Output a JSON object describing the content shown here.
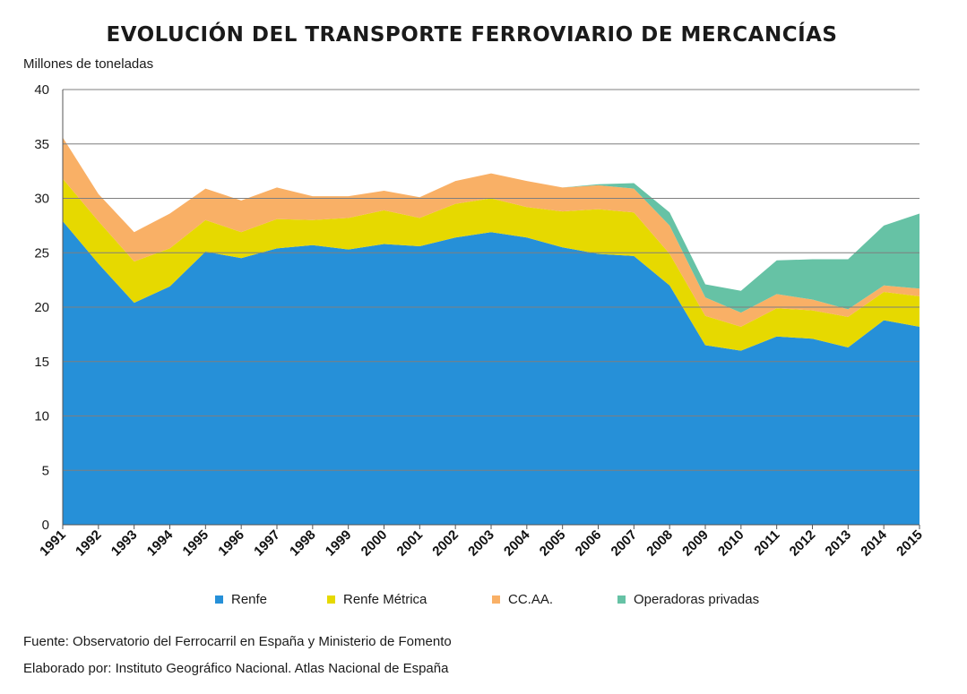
{
  "title": "EVOLUCIÓN DEL TRANSPORTE FERROVIARIO DE MERCANCÍAS",
  "source": "Fuente: Observatorio del Ferrocarril en España y Ministerio de Fomento",
  "credit": "Elaborado por: Instituto Geográfico Nacional. Atlas Nacional de España",
  "chart_data": {
    "type": "area",
    "stacked": true,
    "ylabel": "Millones de toneladas",
    "ylim": [
      0,
      40
    ],
    "yticks": [
      0,
      5,
      10,
      15,
      20,
      25,
      30,
      35,
      40
    ],
    "grid": true,
    "legend_position": "bottom",
    "categories": [
      "1991",
      "1992",
      "1993",
      "1994",
      "1995",
      "1996",
      "1997",
      "1998",
      "1999",
      "2000",
      "2001",
      "2002",
      "2003",
      "2004",
      "2005",
      "2006",
      "2007",
      "2008",
      "2009",
      "2010",
      "2011",
      "2012",
      "2013",
      "2014",
      "2015"
    ],
    "series": [
      {
        "name": "Renfe",
        "color": "#2690d8",
        "values": [
          27.9,
          24.0,
          20.4,
          21.9,
          25.1,
          24.5,
          25.4,
          25.7,
          25.3,
          25.8,
          25.6,
          26.4,
          26.9,
          26.4,
          25.5,
          24.9,
          24.7,
          22.0,
          16.5,
          16.0,
          17.3,
          17.1,
          16.3,
          18.8,
          18.2
        ]
      },
      {
        "name": "Renfe Métrica",
        "color": "#e6d900",
        "values": [
          3.9,
          3.9,
          3.8,
          3.5,
          2.9,
          2.4,
          2.7,
          2.3,
          2.9,
          3.1,
          2.6,
          3.1,
          3.1,
          2.8,
          3.3,
          4.1,
          4.0,
          2.9,
          2.7,
          2.2,
          2.6,
          2.6,
          2.8,
          2.6,
          2.8
        ]
      },
      {
        "name": "CC.AA.",
        "color": "#f9b066",
        "values": [
          3.8,
          2.5,
          2.7,
          3.2,
          2.9,
          2.9,
          2.9,
          2.2,
          2.0,
          1.8,
          1.9,
          2.1,
          2.3,
          2.4,
          2.2,
          2.2,
          2.2,
          2.6,
          1.7,
          1.3,
          1.3,
          1.0,
          0.7,
          0.6,
          0.7
        ]
      },
      {
        "name": "Operadoras privadas",
        "color": "#66c2a5",
        "values": [
          0,
          0,
          0,
          0,
          0,
          0,
          0,
          0,
          0,
          0,
          0,
          0,
          0,
          0,
          0,
          0.1,
          0.5,
          1.2,
          1.2,
          2.0,
          3.1,
          3.7,
          4.6,
          5.5,
          6.9
        ]
      }
    ]
  }
}
